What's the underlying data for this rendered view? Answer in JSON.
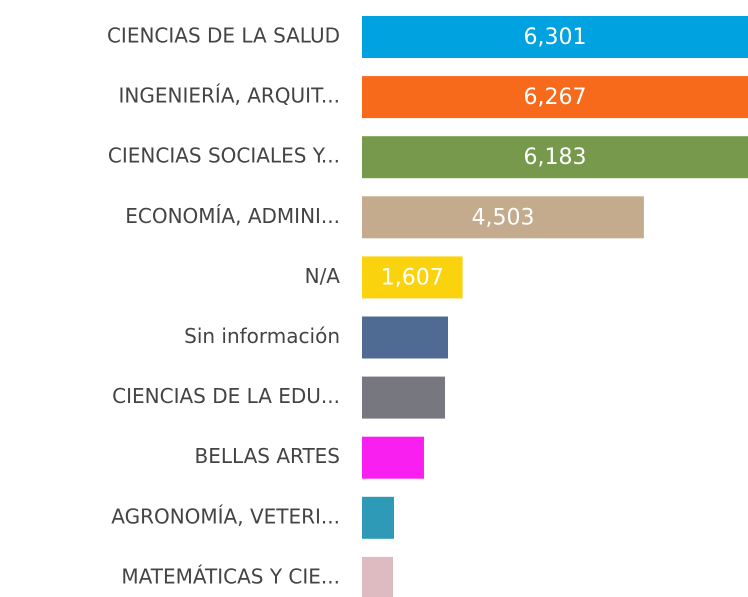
{
  "chart_data": {
    "type": "bar",
    "orientation": "horizontal",
    "categories": [
      "CIENCIAS DE LA SALUD",
      "INGENIERÍA, ARQUIT...",
      "CIENCIAS SOCIALES Y...",
      "ECONOMÍA, ADMINI...",
      "N/A",
      "Sin información",
      "CIENCIAS DE LA EDU...",
      "BELLAS ARTES",
      "AGRONOMÍA, VETERI...",
      "MATEMÁTICAS Y CIE..."
    ],
    "values": [
      6301,
      6267,
      6183,
      4503,
      1607,
      1374,
      1326,
      990,
      511,
      495
    ],
    "value_labels": [
      "6,301",
      "6,267",
      "6,183",
      "4,503",
      "1,607",
      null,
      null,
      null,
      null,
      null
    ],
    "colors": [
      "#00a2e0",
      "#f76a1c",
      "#77994b",
      "#c4ab8d",
      "#fbd20e",
      "#4f6a93",
      "#777780",
      "#f81ff0",
      "#2e9ab8",
      "#ddbbc0"
    ],
    "xlim": [
      0,
      6166
    ]
  }
}
